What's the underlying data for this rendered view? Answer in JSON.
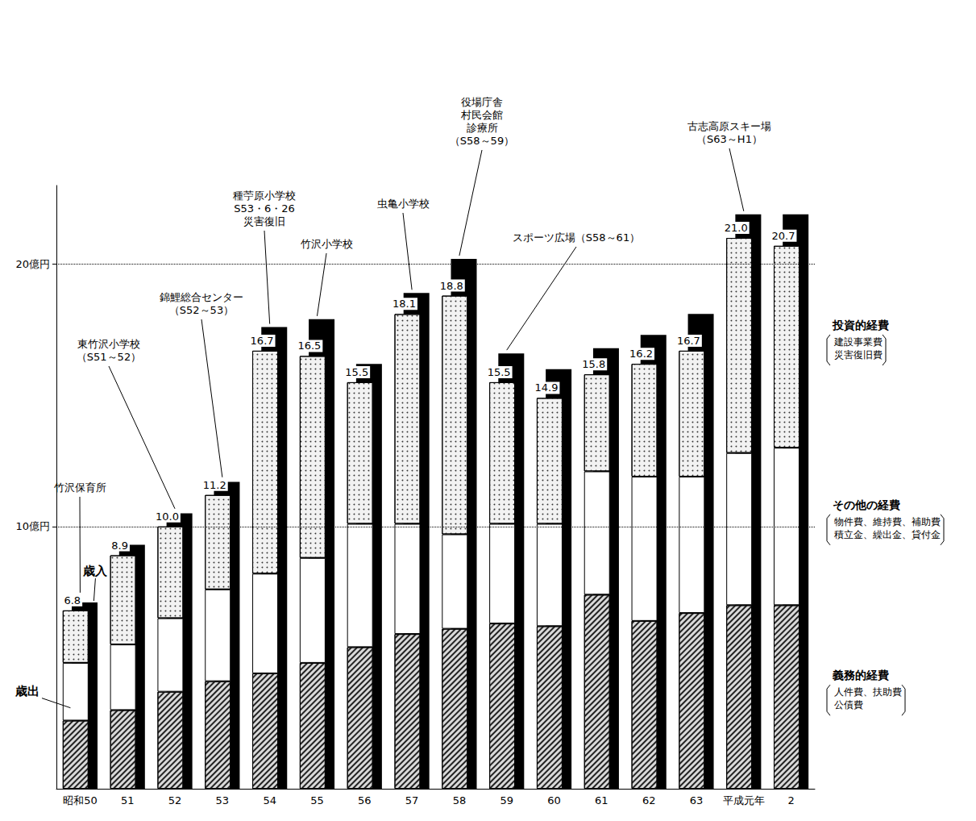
{
  "chart_data": {
    "type": "bar",
    "stacked": true,
    "data_labels": true,
    "grid": true,
    "categories": [
      "昭和50",
      "51",
      "52",
      "53",
      "54",
      "55",
      "56",
      "57",
      "58",
      "59",
      "60",
      "61",
      "62",
      "63",
      "平成元年",
      "2"
    ],
    "ylim": [
      0,
      23
    ],
    "yticks": [
      {
        "value": 10,
        "label": "10億円"
      },
      {
        "value": 20,
        "label": "20億円"
      }
    ],
    "series": [
      {
        "name": "義務的経費",
        "color": "#d9d9d9",
        "note": [
          "人件費、扶助費",
          "公債費"
        ],
        "values": [
          2.6,
          3.0,
          3.7,
          4.1,
          4.4,
          4.8,
          5.4,
          5.9,
          6.1,
          6.3,
          6.2,
          7.4,
          6.4,
          6.7,
          7.0,
          7.0
        ]
      },
      {
        "name": "その他の経費",
        "color": "#ffffff",
        "note": [
          "物件費、維持費、補助費",
          "積立金、繰出金、貸付金"
        ],
        "values": [
          2.2,
          2.5,
          2.8,
          3.5,
          3.8,
          4.0,
          4.7,
          4.2,
          3.6,
          3.8,
          3.9,
          4.7,
          5.5,
          5.2,
          5.8,
          6.0
        ]
      },
      {
        "name": "投資的経費",
        "color": "#f2f2f2",
        "note": [
          "建設事業費",
          "災害復旧費"
        ],
        "values": [
          2.0,
          3.4,
          3.5,
          3.6,
          8.5,
          7.7,
          5.4,
          8.0,
          9.1,
          5.4,
          4.8,
          3.7,
          4.3,
          4.8,
          8.2,
          7.7
        ]
      }
    ],
    "expenditure_label": "歳出",
    "totals": [
      6.8,
      8.9,
      10.0,
      11.2,
      16.7,
      16.5,
      15.5,
      18.1,
      18.8,
      15.5,
      14.9,
      15.8,
      16.2,
      16.7,
      21.0,
      20.7
    ],
    "totals_labels": [
      "6.8",
      "8.9",
      "10.0",
      "11.2",
      "16.7",
      "16.5",
      "15.5",
      "18.1",
      "18.8",
      "15.5",
      "14.9",
      "15.8",
      "16.2",
      "16.7",
      "21.0",
      "20.7"
    ],
    "revenue": {
      "name": "歳入",
      "color": "#000000",
      "values": [
        7.1,
        9.3,
        10.5,
        11.7,
        17.6,
        17.9,
        16.2,
        18.9,
        20.2,
        16.6,
        16.0,
        16.8,
        17.3,
        18.1,
        21.9,
        21.9
      ]
    },
    "annotations": [
      {
        "category": "昭和50",
        "lines": [
          "竹沢保育所"
        ]
      },
      {
        "category": "52",
        "lines": [
          "東竹沢小学校",
          "（S51～52）"
        ]
      },
      {
        "category": "53",
        "lines": [
          "錦鯉総合センター",
          "（S52～53）"
        ]
      },
      {
        "category": "54",
        "lines": [
          "種苧原小学校",
          "S53・6・26",
          "災害復旧"
        ]
      },
      {
        "category": "55",
        "lines": [
          "竹沢小学校"
        ]
      },
      {
        "category": "57",
        "lines": [
          "虫亀小学校"
        ]
      },
      {
        "category": "58",
        "lines": [
          "役場庁舎",
          "村民会館",
          "診療所",
          "（S58～59）"
        ]
      },
      {
        "category": "59",
        "lines": [
          "スポーツ広場（S58～61）"
        ]
      },
      {
        "category": "平成元年",
        "lines": [
          "古志高原スキー場",
          "（S63～H1）"
        ]
      }
    ]
  }
}
